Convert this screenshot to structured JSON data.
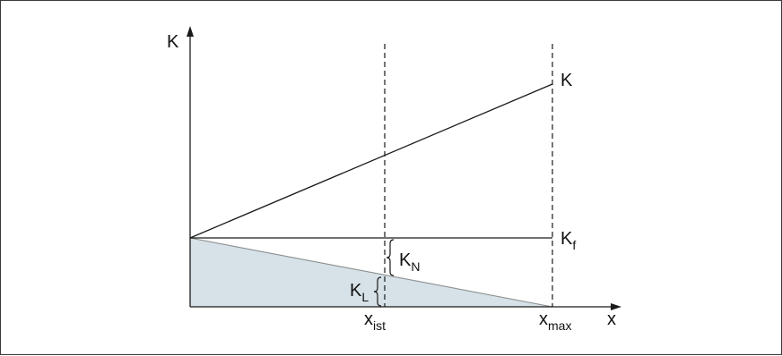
{
  "diagram": {
    "axis_labels": {
      "y": "K",
      "x": "x"
    },
    "line_labels": {
      "total": "K",
      "fixed": "K",
      "fixed_sub": "f"
    },
    "brace_labels": {
      "N": "K",
      "N_sub": "N",
      "L": "K",
      "L_sub": "L"
    },
    "x_markers": {
      "ist": "x",
      "ist_sub": "ist",
      "max": "x",
      "max_sub": "max"
    },
    "colors": {
      "fill": "#d6e2e7",
      "line": "#1a1a1a"
    }
  }
}
